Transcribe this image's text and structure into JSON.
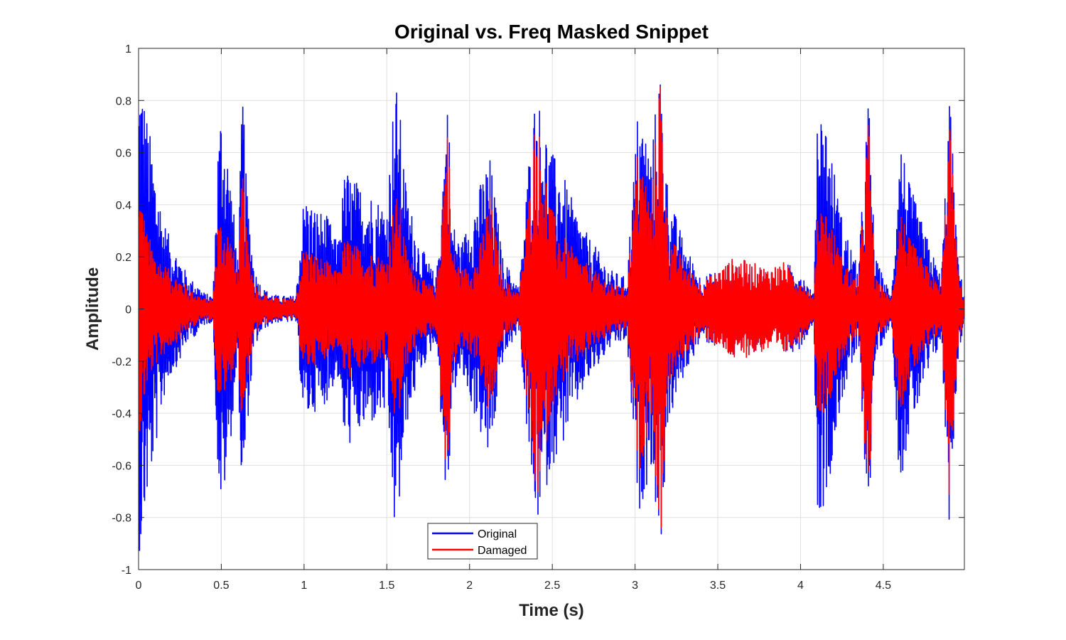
{
  "chart_data": {
    "type": "line",
    "title": "Original vs. Freq Masked Snippet",
    "xlabel": "Time (s)",
    "ylabel": "Amplitude",
    "xlim": [
      0,
      4.99
    ],
    "ylim": [
      -1,
      1
    ],
    "xticks": [
      0,
      0.5,
      1,
      1.5,
      2,
      2.5,
      3,
      3.5,
      4,
      4.5
    ],
    "xtick_labels": [
      "0",
      "0.5",
      "1",
      "1.5",
      "2",
      "2.5",
      "3",
      "3.5",
      "4",
      "4.5"
    ],
    "yticks": [
      -1,
      -0.8,
      -0.6,
      -0.4,
      -0.2,
      0,
      0.2,
      0.4,
      0.6,
      0.8,
      1
    ],
    "ytick_labels": [
      "-1",
      "-0.8",
      "-0.6",
      "-0.4",
      "-0.2",
      "0",
      "0.2",
      "0.4",
      "0.6",
      "0.8",
      "1"
    ],
    "grid": true,
    "legend_position": "bottom-center",
    "series": [
      {
        "name": "Original",
        "color": "#0000ff",
        "envelope": {
          "t": [
            0,
            0.01,
            0.05,
            0.1,
            0.15,
            0.2,
            0.25,
            0.3,
            0.35,
            0.4,
            0.45,
            0.48,
            0.5,
            0.55,
            0.6,
            0.63,
            0.65,
            0.7,
            0.75,
            0.8,
            0.85,
            0.9,
            0.95,
            1.0,
            1.05,
            1.1,
            1.15,
            1.2,
            1.25,
            1.3,
            1.4,
            1.5,
            1.55,
            1.58,
            1.62,
            1.7,
            1.8,
            1.87,
            1.89,
            1.95,
            2.05,
            2.12,
            2.2,
            2.3,
            2.36,
            2.4,
            2.5,
            2.55,
            2.6,
            2.7,
            2.75,
            2.85,
            2.95,
            3.02,
            3.1,
            3.15,
            3.2,
            3.3,
            3.4,
            3.5,
            3.6,
            3.7,
            3.8,
            3.9,
            4.0,
            4.08,
            4.1,
            4.15,
            4.25,
            4.35,
            4.41,
            4.45,
            4.55,
            4.6,
            4.65,
            4.75,
            4.85,
            4.9,
            4.95,
            4.99
          ],
          "amp": [
            0.9,
            0.95,
            0.75,
            0.55,
            0.35,
            0.25,
            0.2,
            0.12,
            0.1,
            0.06,
            0.05,
            0.65,
            0.8,
            0.55,
            0.2,
            0.9,
            0.5,
            0.15,
            0.08,
            0.06,
            0.05,
            0.05,
            0.05,
            0.45,
            0.4,
            0.38,
            0.35,
            0.25,
            0.55,
            0.5,
            0.45,
            0.4,
            0.9,
            0.75,
            0.45,
            0.25,
            0.12,
            0.88,
            0.35,
            0.25,
            0.45,
            0.6,
            0.2,
            0.08,
            0.6,
            0.85,
            0.6,
            0.55,
            0.45,
            0.3,
            0.25,
            0.15,
            0.12,
            0.8,
            0.6,
            0.97,
            0.45,
            0.25,
            0.12,
            0.15,
            0.2,
            0.18,
            0.16,
            0.18,
            0.15,
            0.05,
            0.8,
            0.75,
            0.35,
            0.15,
            0.85,
            0.2,
            0.05,
            0.7,
            0.5,
            0.3,
            0.12,
            0.85,
            0.2,
            0.05
          ]
        }
      },
      {
        "name": "Damaged",
        "color": "#ff0000",
        "envelope": {
          "t": [
            0,
            0.01,
            0.05,
            0.1,
            0.15,
            0.2,
            0.25,
            0.3,
            0.35,
            0.4,
            0.45,
            0.48,
            0.5,
            0.55,
            0.6,
            0.63,
            0.65,
            0.7,
            0.75,
            0.8,
            0.85,
            0.9,
            0.95,
            1.0,
            1.05,
            1.1,
            1.15,
            1.2,
            1.25,
            1.3,
            1.4,
            1.5,
            1.55,
            1.58,
            1.62,
            1.7,
            1.8,
            1.87,
            1.89,
            1.95,
            2.05,
            2.12,
            2.2,
            2.3,
            2.36,
            2.4,
            2.5,
            2.55,
            2.6,
            2.7,
            2.75,
            2.85,
            2.95,
            3.02,
            3.1,
            3.15,
            3.2,
            3.3,
            3.4,
            3.5,
            3.6,
            3.7,
            3.8,
            3.9,
            4.0,
            4.08,
            4.1,
            4.15,
            4.25,
            4.35,
            4.41,
            4.45,
            4.55,
            4.6,
            4.65,
            4.75,
            4.85,
            4.9,
            4.95,
            4.99
          ],
          "amp": [
            0.45,
            0.48,
            0.3,
            0.22,
            0.18,
            0.14,
            0.12,
            0.08,
            0.06,
            0.04,
            0.04,
            0.35,
            0.35,
            0.3,
            0.15,
            0.58,
            0.3,
            0.1,
            0.06,
            0.05,
            0.04,
            0.04,
            0.04,
            0.25,
            0.22,
            0.2,
            0.18,
            0.14,
            0.28,
            0.25,
            0.22,
            0.2,
            0.45,
            0.4,
            0.22,
            0.12,
            0.08,
            0.78,
            0.25,
            0.15,
            0.2,
            0.45,
            0.12,
            0.06,
            0.45,
            0.78,
            0.38,
            0.3,
            0.25,
            0.18,
            0.15,
            0.1,
            0.08,
            0.65,
            0.4,
            0.97,
            0.3,
            0.18,
            0.1,
            0.15,
            0.2,
            0.18,
            0.16,
            0.18,
            0.12,
            0.04,
            0.4,
            0.4,
            0.2,
            0.1,
            0.78,
            0.12,
            0.04,
            0.42,
            0.28,
            0.18,
            0.08,
            0.75,
            0.15,
            0.04
          ]
        }
      }
    ]
  }
}
